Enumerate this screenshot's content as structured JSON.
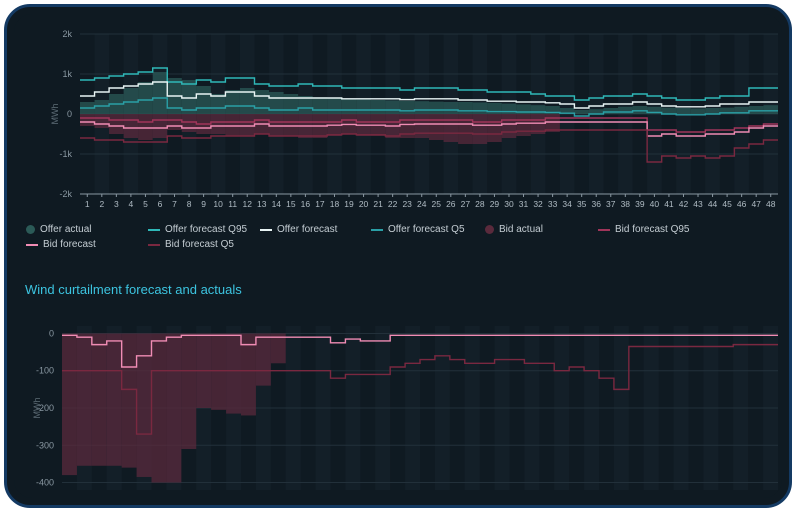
{
  "colors": {
    "offer_actual": "#2b5a57",
    "offer_q95": "#2fb8b8",
    "offer_forecast": "#e8f4f4",
    "offer_q5": "#2a9fa6",
    "bid_actual": "#5a2a3c",
    "bid_q95": "#a0355a",
    "bid_forecast": "#f08cb4",
    "bid_q5": "#7a2840",
    "grid": "#22303a",
    "axis_text": "#8a98a2"
  },
  "section_title": "Wind curtailment forecast and actuals",
  "chart_data": [
    {
      "type": "line",
      "ylabel": "MWh",
      "ylim": [
        -2000,
        2000
      ],
      "y_ticks": [
        "2k",
        "1k",
        "0",
        "-1k",
        "-2k"
      ],
      "y_tick_values": [
        2000,
        1000,
        0,
        -1000,
        -2000
      ],
      "x": [
        "1",
        "2",
        "3",
        "4",
        "5",
        "6",
        "7",
        "8",
        "9",
        "10",
        "11",
        "12",
        "13",
        "14",
        "15",
        "16",
        "17",
        "18",
        "19",
        "20",
        "21",
        "22",
        "23",
        "24",
        "25",
        "26",
        "27",
        "28",
        "29",
        "30",
        "31",
        "32",
        "33",
        "34",
        "35",
        "36",
        "37",
        "38",
        "39",
        "40",
        "41",
        "42",
        "43",
        "44",
        "45",
        "46",
        "47",
        "48"
      ],
      "legend": [
        {
          "label": "Offer actual",
          "kind": "dot",
          "color": "offer_actual"
        },
        {
          "label": "Offer forecast Q95",
          "kind": "line",
          "color": "offer_q95"
        },
        {
          "label": "Offer forecast",
          "kind": "line",
          "color": "offer_forecast"
        },
        {
          "label": "Offer forecast Q5",
          "kind": "line",
          "color": "offer_q5"
        },
        {
          "label": "Bid actual",
          "kind": "dot",
          "color": "bid_actual"
        },
        {
          "label": "Bid forecast Q95",
          "kind": "line",
          "color": "bid_q95"
        },
        {
          "label": "Bid forecast",
          "kind": "line",
          "color": "bid_forecast"
        },
        {
          "label": "Bid forecast Q5",
          "kind": "line",
          "color": "bid_q5"
        }
      ],
      "series": [
        {
          "name": "Offer actual",
          "type": "bar",
          "color": "offer_actual",
          "values": [
            300,
            350,
            500,
            650,
            800,
            1050,
            900,
            850,
            700,
            500,
            600,
            650,
            600,
            550,
            500,
            450,
            420,
            400,
            380,
            360,
            350,
            340,
            330,
            320,
            310,
            300,
            300,
            290,
            280,
            260,
            240,
            220,
            200,
            150,
            100,
            120,
            150,
            180,
            200,
            180,
            160,
            150,
            140,
            150,
            160,
            180,
            200,
            220
          ]
        },
        {
          "name": "Offer forecast Q95",
          "type": "step",
          "color": "offer_q95",
          "values": [
            850,
            900,
            950,
            1000,
            1050,
            1150,
            800,
            750,
            850,
            800,
            900,
            900,
            750,
            700,
            700,
            750,
            700,
            700,
            650,
            650,
            650,
            650,
            600,
            650,
            650,
            650,
            600,
            600,
            550,
            550,
            550,
            500,
            450,
            450,
            350,
            400,
            450,
            450,
            500,
            450,
            400,
            350,
            350,
            400,
            450,
            450,
            650,
            650
          ]
        },
        {
          "name": "Offer forecast",
          "type": "step",
          "color": "offer_forecast",
          "values": [
            450,
            550,
            650,
            700,
            750,
            800,
            450,
            400,
            500,
            450,
            550,
            550,
            450,
            400,
            400,
            400,
            400,
            400,
            380,
            380,
            380,
            380,
            360,
            380,
            380,
            380,
            350,
            350,
            320,
            320,
            300,
            300,
            280,
            250,
            150,
            200,
            250,
            250,
            300,
            250,
            200,
            180,
            180,
            200,
            250,
            250,
            300,
            300
          ]
        },
        {
          "name": "Offer forecast Q5",
          "type": "step",
          "color": "offer_q5",
          "values": [
            150,
            200,
            250,
            300,
            350,
            400,
            150,
            100,
            150,
            150,
            200,
            200,
            150,
            100,
            100,
            150,
            100,
            100,
            100,
            100,
            100,
            100,
            80,
            100,
            100,
            100,
            80,
            80,
            60,
            60,
            50,
            50,
            40,
            20,
            -50,
            0,
            50,
            50,
            80,
            40,
            0,
            -20,
            -20,
            0,
            30,
            30,
            80,
            80
          ]
        },
        {
          "name": "Bid actual",
          "type": "bar",
          "color": "bid_actual",
          "values": [
            -300,
            -350,
            -500,
            -600,
            -650,
            -600,
            -400,
            -450,
            -500,
            -500,
            -550,
            -550,
            -500,
            -550,
            -550,
            -600,
            -600,
            -550,
            -500,
            -550,
            -550,
            -600,
            -600,
            -600,
            -650,
            -700,
            -750,
            -750,
            -700,
            -600,
            -550,
            -500,
            -450,
            0,
            0,
            0,
            0,
            0,
            0,
            0,
            0,
            0,
            0,
            0,
            0,
            0,
            0,
            0
          ]
        },
        {
          "name": "Bid forecast Q95",
          "type": "step",
          "color": "bid_q95",
          "values": [
            -100,
            -100,
            -150,
            -150,
            -200,
            -150,
            -150,
            -200,
            -250,
            -200,
            -200,
            -200,
            -150,
            -200,
            -200,
            -200,
            -200,
            -200,
            -150,
            -200,
            -200,
            -200,
            -150,
            -150,
            -150,
            -150,
            -150,
            -200,
            -200,
            -150,
            -150,
            -150,
            -100,
            -100,
            -100,
            -100,
            -100,
            -100,
            -100,
            -400,
            -400,
            -450,
            -450,
            -400,
            -400,
            -350,
            -300,
            -250
          ]
        },
        {
          "name": "Bid forecast",
          "type": "step",
          "color": "bid_forecast",
          "values": [
            -200,
            -250,
            -300,
            -350,
            -350,
            -350,
            -300,
            -350,
            -350,
            -300,
            -300,
            -300,
            -250,
            -300,
            -300,
            -300,
            -300,
            -280,
            -260,
            -280,
            -280,
            -300,
            -260,
            -250,
            -250,
            -250,
            -250,
            -280,
            -280,
            -250,
            -230,
            -230,
            -200,
            -200,
            -200,
            -200,
            -200,
            -200,
            -200,
            -550,
            -500,
            -550,
            -550,
            -500,
            -500,
            -450,
            -350,
            -300
          ]
        },
        {
          "name": "Bid forecast Q5",
          "type": "step",
          "color": "bid_q5",
          "values": [
            -600,
            -650,
            -650,
            -700,
            -700,
            -700,
            -550,
            -600,
            -600,
            -550,
            -550,
            -550,
            -500,
            -550,
            -550,
            -550,
            -550,
            -520,
            -500,
            -520,
            -520,
            -550,
            -500,
            -480,
            -480,
            -480,
            -480,
            -500,
            -500,
            -450,
            -430,
            -430,
            -400,
            -400,
            -400,
            -400,
            -400,
            -400,
            -400,
            -1200,
            -1050,
            -1100,
            -1050,
            -1100,
            -1050,
            -850,
            -750,
            -650
          ]
        }
      ]
    },
    {
      "type": "line",
      "title": "Wind curtailment forecast and actuals",
      "ylabel": "MWh",
      "ylim": [
        -420,
        20
      ],
      "y_ticks": [
        "0",
        "-100",
        "-200",
        "-300",
        "-400"
      ],
      "y_tick_values": [
        0,
        -100,
        -200,
        -300,
        -400
      ],
      "series": [
        {
          "name": "Bid actual",
          "type": "bar",
          "color": "bid_actual",
          "values": [
            -380,
            -355,
            -355,
            -355,
            -360,
            -385,
            -400,
            -400,
            -310,
            -200,
            -205,
            -215,
            -220,
            -140,
            -80,
            0,
            0,
            0,
            0,
            0,
            0,
            0,
            0,
            0,
            0,
            0,
            0,
            0,
            0,
            0,
            0,
            0,
            0,
            0,
            0,
            0,
            0,
            0,
            0,
            0,
            0,
            0,
            0,
            0,
            0,
            0,
            0,
            0
          ]
        },
        {
          "name": "Bid forecast",
          "type": "step",
          "color": "bid_forecast",
          "values": [
            -5,
            -10,
            -30,
            -20,
            -90,
            -60,
            -20,
            -10,
            -5,
            -5,
            -5,
            -5,
            -30,
            -10,
            -10,
            -10,
            -10,
            -10,
            -25,
            -15,
            -20,
            -20,
            -5,
            -5,
            -5,
            -5,
            -5,
            -5,
            -5,
            -5,
            -5,
            -5,
            -5,
            -5,
            -5,
            -5,
            -5,
            -5,
            -5,
            -5,
            -5,
            -5,
            -5,
            -5,
            -5,
            -5,
            -5,
            -5
          ]
        },
        {
          "name": "Bid forecast Q5",
          "type": "step",
          "color": "bid_q5",
          "values": [
            -100,
            -100,
            -100,
            -100,
            -150,
            -270,
            -100,
            -100,
            -100,
            -100,
            -100,
            -100,
            -100,
            -100,
            -100,
            -100,
            -100,
            -100,
            -120,
            -110,
            -110,
            -110,
            -90,
            -80,
            -70,
            -60,
            -70,
            -80,
            -80,
            -70,
            -70,
            -80,
            -80,
            -100,
            -90,
            -100,
            -120,
            -150,
            -35,
            -35,
            -35,
            -35,
            -35,
            -35,
            -35,
            -30,
            -30,
            -30
          ]
        }
      ]
    }
  ]
}
